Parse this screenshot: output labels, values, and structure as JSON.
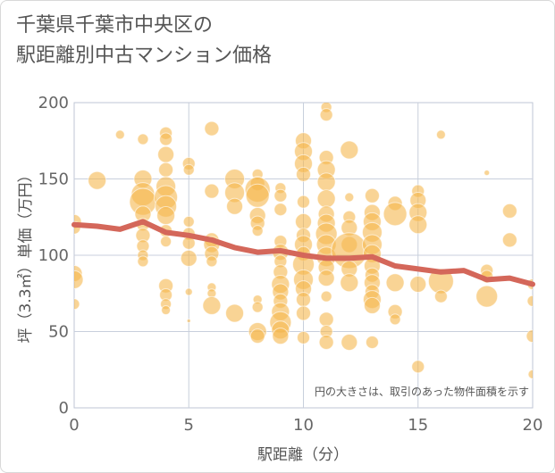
{
  "title_line1": "千葉県千葉市中央区の",
  "title_line2": "駅距離別中古マンション価格",
  "chart_data": {
    "type": "scatter",
    "title": "千葉県千葉市中央区の駅距離別中古マンション価格",
    "xlabel": "駅距離（分）",
    "ylabel": "坪（3.3㎡）単価（万円）",
    "xlim": [
      0,
      20
    ],
    "ylim": [
      0,
      200
    ],
    "xticks": [
      0,
      5,
      10,
      15,
      20
    ],
    "yticks": [
      0,
      50,
      100,
      150,
      200
    ],
    "grid": true,
    "annotation": "円の大きさは、取引のあった物件面積を示す",
    "bubble_color": "#f5b84f",
    "trend_color": "#d4675a",
    "points": [
      {
        "x": 0,
        "y": 122,
        "s": 8
      },
      {
        "x": 0,
        "y": 118,
        "s": 7
      },
      {
        "x": 0,
        "y": 88,
        "s": 9
      },
      {
        "x": 0,
        "y": 84,
        "s": 10
      },
      {
        "x": 0,
        "y": 68,
        "s": 6
      },
      {
        "x": 1,
        "y": 149,
        "s": 10
      },
      {
        "x": 2,
        "y": 179,
        "s": 5
      },
      {
        "x": 3,
        "y": 176,
        "s": 6
      },
      {
        "x": 3,
        "y": 150,
        "s": 10
      },
      {
        "x": 3,
        "y": 140,
        "s": 13
      },
      {
        "x": 3,
        "y": 135,
        "s": 15
      },
      {
        "x": 3,
        "y": 127,
        "s": 9
      },
      {
        "x": 3,
        "y": 120,
        "s": 7
      },
      {
        "x": 3,
        "y": 113,
        "s": 8
      },
      {
        "x": 3,
        "y": 106,
        "s": 7
      },
      {
        "x": 3,
        "y": 100,
        "s": 6
      },
      {
        "x": 3,
        "y": 96,
        "s": 6
      },
      {
        "x": 4,
        "y": 180,
        "s": 7
      },
      {
        "x": 4,
        "y": 176,
        "s": 7
      },
      {
        "x": 4,
        "y": 166,
        "s": 9
      },
      {
        "x": 4,
        "y": 156,
        "s": 8
      },
      {
        "x": 4,
        "y": 145,
        "s": 11
      },
      {
        "x": 4,
        "y": 138,
        "s": 13
      },
      {
        "x": 4,
        "y": 132,
        "s": 12
      },
      {
        "x": 4,
        "y": 126,
        "s": 10
      },
      {
        "x": 4,
        "y": 116,
        "s": 7
      },
      {
        "x": 4,
        "y": 109,
        "s": 6
      },
      {
        "x": 4,
        "y": 80,
        "s": 8
      },
      {
        "x": 4,
        "y": 74,
        "s": 7
      },
      {
        "x": 4,
        "y": 68,
        "s": 6
      },
      {
        "x": 4,
        "y": 64,
        "s": 5
      },
      {
        "x": 5,
        "y": 160,
        "s": 7
      },
      {
        "x": 5,
        "y": 156,
        "s": 6
      },
      {
        "x": 5,
        "y": 122,
        "s": 6
      },
      {
        "x": 5,
        "y": 114,
        "s": 7
      },
      {
        "x": 5,
        "y": 108,
        "s": 7
      },
      {
        "x": 5,
        "y": 98,
        "s": 9
      },
      {
        "x": 5,
        "y": 76,
        "s": 4
      },
      {
        "x": 5,
        "y": 57,
        "s": 2
      },
      {
        "x": 6,
        "y": 183,
        "s": 8
      },
      {
        "x": 6,
        "y": 142,
        "s": 8
      },
      {
        "x": 6,
        "y": 110,
        "s": 8
      },
      {
        "x": 6,
        "y": 107,
        "s": 9
      },
      {
        "x": 6,
        "y": 101,
        "s": 8
      },
      {
        "x": 6,
        "y": 96,
        "s": 6
      },
      {
        "x": 6,
        "y": 79,
        "s": 5
      },
      {
        "x": 6,
        "y": 75,
        "s": 5
      },
      {
        "x": 6,
        "y": 67,
        "s": 10
      },
      {
        "x": 7,
        "y": 150,
        "s": 11
      },
      {
        "x": 7,
        "y": 141,
        "s": 11
      },
      {
        "x": 7,
        "y": 132,
        "s": 9
      },
      {
        "x": 7,
        "y": 62,
        "s": 10
      },
      {
        "x": 8,
        "y": 153,
        "s": 6
      },
      {
        "x": 8,
        "y": 147,
        "s": 8
      },
      {
        "x": 8,
        "y": 143,
        "s": 14
      },
      {
        "x": 8,
        "y": 139,
        "s": 13
      },
      {
        "x": 8,
        "y": 126,
        "s": 9
      },
      {
        "x": 8,
        "y": 121,
        "s": 8
      },
      {
        "x": 8,
        "y": 116,
        "s": 6
      },
      {
        "x": 8,
        "y": 71,
        "s": 5
      },
      {
        "x": 8,
        "y": 66,
        "s": 6
      },
      {
        "x": 8,
        "y": 50,
        "s": 10
      },
      {
        "x": 8,
        "y": 47,
        "s": 8
      },
      {
        "x": 9,
        "y": 144,
        "s": 6
      },
      {
        "x": 9,
        "y": 139,
        "s": 7
      },
      {
        "x": 9,
        "y": 130,
        "s": 7
      },
      {
        "x": 9,
        "y": 109,
        "s": 7
      },
      {
        "x": 9,
        "y": 102,
        "s": 9
      },
      {
        "x": 9,
        "y": 96,
        "s": 7
      },
      {
        "x": 9,
        "y": 89,
        "s": 8
      },
      {
        "x": 9,
        "y": 81,
        "s": 10
      },
      {
        "x": 9,
        "y": 76,
        "s": 9
      },
      {
        "x": 9,
        "y": 70,
        "s": 8
      },
      {
        "x": 9,
        "y": 63,
        "s": 10
      },
      {
        "x": 9,
        "y": 56,
        "s": 12
      },
      {
        "x": 9,
        "y": 51,
        "s": 10
      },
      {
        "x": 9,
        "y": 47,
        "s": 9
      },
      {
        "x": 10,
        "y": 175,
        "s": 9
      },
      {
        "x": 10,
        "y": 168,
        "s": 10
      },
      {
        "x": 10,
        "y": 160,
        "s": 10
      },
      {
        "x": 10,
        "y": 153,
        "s": 8
      },
      {
        "x": 10,
        "y": 135,
        "s": 7
      },
      {
        "x": 10,
        "y": 122,
        "s": 9
      },
      {
        "x": 10,
        "y": 113,
        "s": 8
      },
      {
        "x": 10,
        "y": 107,
        "s": 10
      },
      {
        "x": 10,
        "y": 101,
        "s": 8
      },
      {
        "x": 10,
        "y": 94,
        "s": 12
      },
      {
        "x": 10,
        "y": 84,
        "s": 11
      },
      {
        "x": 10,
        "y": 78,
        "s": 9
      },
      {
        "x": 10,
        "y": 71,
        "s": 8
      },
      {
        "x": 10,
        "y": 62,
        "s": 8
      },
      {
        "x": 10,
        "y": 46,
        "s": 7
      },
      {
        "x": 11,
        "y": 197,
        "s": 6
      },
      {
        "x": 11,
        "y": 192,
        "s": 7
      },
      {
        "x": 11,
        "y": 164,
        "s": 8
      },
      {
        "x": 11,
        "y": 156,
        "s": 10
      },
      {
        "x": 11,
        "y": 148,
        "s": 10
      },
      {
        "x": 11,
        "y": 137,
        "s": 10
      },
      {
        "x": 11,
        "y": 127,
        "s": 9
      },
      {
        "x": 11,
        "y": 121,
        "s": 10
      },
      {
        "x": 11,
        "y": 114,
        "s": 12
      },
      {
        "x": 11,
        "y": 107,
        "s": 11
      },
      {
        "x": 11,
        "y": 99,
        "s": 11
      },
      {
        "x": 11,
        "y": 92,
        "s": 9
      },
      {
        "x": 11,
        "y": 85,
        "s": 9
      },
      {
        "x": 11,
        "y": 73,
        "s": 6
      },
      {
        "x": 11,
        "y": 58,
        "s": 8
      },
      {
        "x": 11,
        "y": 50,
        "s": 7
      },
      {
        "x": 11,
        "y": 43,
        "s": 8
      },
      {
        "x": 12,
        "y": 169,
        "s": 10
      },
      {
        "x": 12,
        "y": 138,
        "s": 5
      },
      {
        "x": 12,
        "y": 125,
        "s": 7
      },
      {
        "x": 12,
        "y": 118,
        "s": 9
      },
      {
        "x": 12,
        "y": 107,
        "s": 9
      },
      {
        "x": 12,
        "y": 103,
        "s": 20
      },
      {
        "x": 12,
        "y": 91,
        "s": 9
      },
      {
        "x": 12,
        "y": 82,
        "s": 10
      },
      {
        "x": 12,
        "y": 43,
        "s": 9
      },
      {
        "x": 13,
        "y": 139,
        "s": 8
      },
      {
        "x": 13,
        "y": 128,
        "s": 9
      },
      {
        "x": 13,
        "y": 122,
        "s": 10
      },
      {
        "x": 13,
        "y": 115,
        "s": 11
      },
      {
        "x": 13,
        "y": 107,
        "s": 11
      },
      {
        "x": 13,
        "y": 101,
        "s": 10
      },
      {
        "x": 13,
        "y": 93,
        "s": 9
      },
      {
        "x": 13,
        "y": 87,
        "s": 8
      },
      {
        "x": 13,
        "y": 82,
        "s": 9
      },
      {
        "x": 13,
        "y": 76,
        "s": 8
      },
      {
        "x": 13,
        "y": 71,
        "s": 10
      },
      {
        "x": 13,
        "y": 67,
        "s": 9
      },
      {
        "x": 13,
        "y": 43,
        "s": 7
      },
      {
        "x": 14,
        "y": 134,
        "s": 8
      },
      {
        "x": 14,
        "y": 127,
        "s": 13
      },
      {
        "x": 14,
        "y": 82,
        "s": 10
      },
      {
        "x": 14,
        "y": 63,
        "s": 8
      },
      {
        "x": 14,
        "y": 58,
        "s": 6
      },
      {
        "x": 15,
        "y": 142,
        "s": 7
      },
      {
        "x": 15,
        "y": 136,
        "s": 9
      },
      {
        "x": 15,
        "y": 128,
        "s": 10
      },
      {
        "x": 15,
        "y": 120,
        "s": 10
      },
      {
        "x": 15,
        "y": 81,
        "s": 9
      },
      {
        "x": 15,
        "y": 27,
        "s": 7
      },
      {
        "x": 16,
        "y": 179,
        "s": 5
      },
      {
        "x": 16,
        "y": 83,
        "s": 14
      },
      {
        "x": 16,
        "y": 73,
        "s": 7
      },
      {
        "x": 18,
        "y": 154,
        "s": 3
      },
      {
        "x": 18,
        "y": 90,
        "s": 7
      },
      {
        "x": 18,
        "y": 86,
        "s": 7
      },
      {
        "x": 18,
        "y": 73,
        "s": 12
      },
      {
        "x": 19,
        "y": 129,
        "s": 8
      },
      {
        "x": 19,
        "y": 110,
        "s": 8
      },
      {
        "x": 20,
        "y": 81,
        "s": 6
      },
      {
        "x": 20,
        "y": 70,
        "s": 6
      },
      {
        "x": 20,
        "y": 47,
        "s": 7
      },
      {
        "x": 20,
        "y": 22,
        "s": 5
      }
    ],
    "trend": {
      "x": [
        0,
        1,
        2,
        3,
        4,
        5,
        6,
        7,
        8,
        9,
        10,
        11,
        12,
        13,
        14,
        15,
        16,
        17,
        18,
        19,
        20
      ],
      "y": [
        120,
        119,
        117,
        122,
        115,
        113,
        110,
        105,
        102,
        103,
        100,
        98,
        98,
        99,
        93,
        91,
        89,
        90,
        84,
        85,
        81
      ]
    }
  }
}
